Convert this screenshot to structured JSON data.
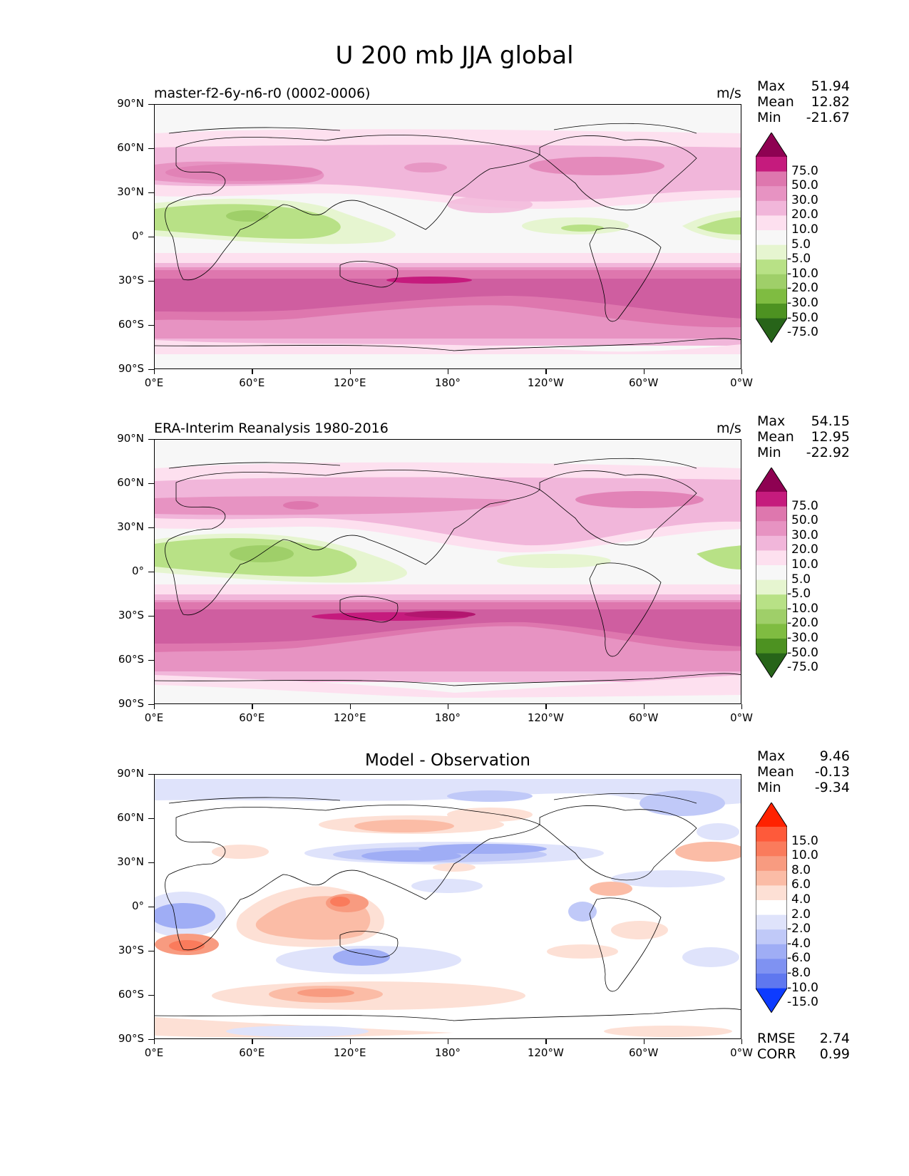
{
  "title": "U 200 mb JJA global",
  "lat_ticks": [
    "90°N",
    "60°N",
    "30°N",
    "0°",
    "30°S",
    "60°S",
    "90°S"
  ],
  "lon_ticks": [
    "0°E",
    "60°E",
    "120°E",
    "180°",
    "120°W",
    "60°W",
    "0°W"
  ],
  "panels": [
    {
      "title": "master-f2-6y-n6-r0 (0002-0006)",
      "units": "m/s",
      "stats": {
        "max_label": "Max",
        "max": "51.94",
        "mean_label": "Mean",
        "mean": "12.82",
        "min_label": "Min",
        "min": "-21.67"
      },
      "colorbar": {
        "labels": [
          "75.0",
          "50.0",
          "30.0",
          "20.0",
          "10.0",
          "5.0",
          "-5.0",
          "-10.0",
          "-20.0",
          "-30.0",
          "-50.0",
          "-75.0"
        ],
        "colors": [
          "#8e0152",
          "#c51b7d",
          "#de77ae",
          "#e793c2",
          "#f1b6da",
          "#fde0ef",
          "#f7f7f7",
          "#e6f5d0",
          "#b8e186",
          "#9fcf69",
          "#7fbc41",
          "#4d9221",
          "#276419"
        ]
      }
    },
    {
      "title": "ERA-Interim Reanalysis 1980-2016",
      "units": "m/s",
      "stats": {
        "max_label": "Max",
        "max": "54.15",
        "mean_label": "Mean",
        "mean": "12.95",
        "min_label": "Min",
        "min": "-22.92"
      },
      "colorbar": {
        "labels": [
          "75.0",
          "50.0",
          "30.0",
          "20.0",
          "10.0",
          "5.0",
          "-5.0",
          "-10.0",
          "-20.0",
          "-30.0",
          "-50.0",
          "-75.0"
        ],
        "colors": [
          "#8e0152",
          "#c51b7d",
          "#de77ae",
          "#e793c2",
          "#f1b6da",
          "#fde0ef",
          "#f7f7f7",
          "#e6f5d0",
          "#b8e186",
          "#9fcf69",
          "#7fbc41",
          "#4d9221",
          "#276419"
        ]
      }
    },
    {
      "title": "Model - Observation",
      "units": "",
      "stats": {
        "max_label": "Max",
        "max": "9.46",
        "mean_label": "Mean",
        "mean": "-0.13",
        "min_label": "Min",
        "min": "-9.34"
      },
      "extra_stats": {
        "rmse_label": "RMSE",
        "rmse": "2.74",
        "corr_label": "CORR",
        "corr": "0.99"
      },
      "colorbar": {
        "labels": [
          "15.0",
          "10.0",
          "8.0",
          "6.0",
          "4.0",
          "2.0",
          "-2.0",
          "-4.0",
          "-6.0",
          "-8.0",
          "-10.0",
          "-15.0"
        ],
        "colors": [
          "#ff2200",
          "#fe5a3a",
          "#fa7b5c",
          "#f89b80",
          "#fbbca6",
          "#fde0d5",
          "#ffffff",
          "#dfe3fb",
          "#c0c9f8",
          "#9fadf5",
          "#7f92f2",
          "#5f77ef",
          "#0d3bff"
        ]
      }
    }
  ],
  "chart_data": [
    {
      "type": "heatmap",
      "title": "master-f2-6y-n6-r0 (0002-0006)",
      "units": "m/s",
      "projection": "equirectangular global map",
      "x_range": [
        0,
        360
      ],
      "y_range": [
        -90,
        90
      ],
      "levels": [
        -75,
        -50,
        -30,
        -20,
        -10,
        -5,
        5,
        10,
        20,
        30,
        50,
        75
      ],
      "max": 51.94,
      "mean": 12.82,
      "min": -21.67
    },
    {
      "type": "heatmap",
      "title": "ERA-Interim Reanalysis 1980-2016",
      "units": "m/s",
      "projection": "equirectangular global map",
      "x_range": [
        0,
        360
      ],
      "y_range": [
        -90,
        90
      ],
      "levels": [
        -75,
        -50,
        -30,
        -20,
        -10,
        -5,
        5,
        10,
        20,
        30,
        50,
        75
      ],
      "max": 54.15,
      "mean": 12.95,
      "min": -22.92
    },
    {
      "type": "heatmap",
      "title": "Model - Observation",
      "projection": "equirectangular global map",
      "x_range": [
        0,
        360
      ],
      "y_range": [
        -90,
        90
      ],
      "levels": [
        -15,
        -10,
        -8,
        -6,
        -4,
        -2,
        2,
        4,
        6,
        8,
        10,
        15
      ],
      "max": 9.46,
      "mean": -0.13,
      "min": -9.34,
      "rmse": 2.74,
      "corr": 0.99
    }
  ]
}
